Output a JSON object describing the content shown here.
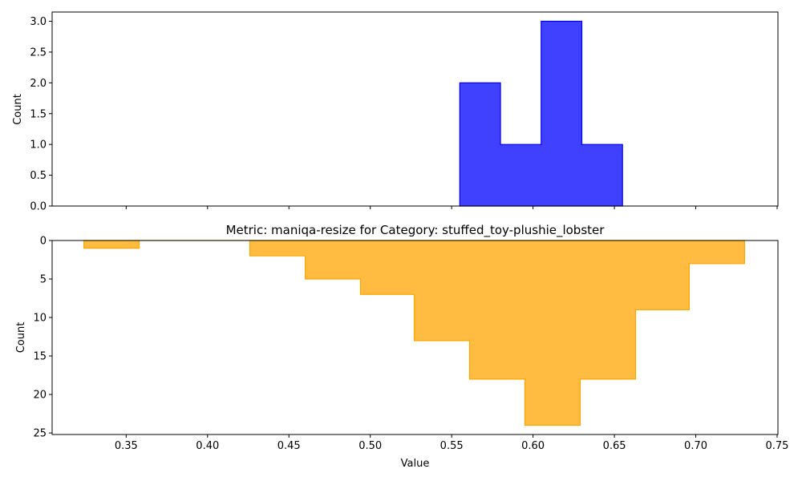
{
  "chart_data": [
    {
      "type": "histogram",
      "panel": "top",
      "title": "",
      "xlabel": "",
      "ylabel": "Count",
      "xlim": [
        0.3045,
        0.7505
      ],
      "ylim": [
        0,
        3.15
      ],
      "y_inverted": false,
      "color": "#0000ff",
      "fill_opacity": 0.75,
      "yticks": [
        0.0,
        0.5,
        1.0,
        1.5,
        2.0,
        2.5,
        3.0
      ],
      "ytick_labels": [
        "0.0",
        "0.5",
        "1.0",
        "1.5",
        "2.0",
        "2.5",
        "3.0"
      ],
      "bins": [
        {
          "x0": 0.555,
          "x1": 0.58,
          "count": 2
        },
        {
          "x0": 0.58,
          "x1": 0.605,
          "count": 1
        },
        {
          "x0": 0.605,
          "x1": 0.63,
          "count": 3
        },
        {
          "x0": 0.63,
          "x1": 0.655,
          "count": 1
        }
      ]
    },
    {
      "type": "histogram",
      "panel": "bottom",
      "title": "Metric: maniqa-resize for Category: stuffed_toy-plushie_lobster",
      "xlabel": "Value",
      "ylabel": "Count",
      "xlim": [
        0.3045,
        0.7505
      ],
      "ylim": [
        25.2,
        0
      ],
      "y_inverted": true,
      "color": "#ffa500",
      "fill_opacity": 0.75,
      "xticks": [
        0.35,
        0.4,
        0.45,
        0.5,
        0.55,
        0.6,
        0.65,
        0.7,
        0.75
      ],
      "xtick_labels": [
        "0.35",
        "0.40",
        "0.45",
        "0.50",
        "0.55",
        "0.60",
        "0.65",
        "0.70",
        "0.75"
      ],
      "yticks": [
        0,
        5,
        10,
        15,
        20,
        25
      ],
      "ytick_labels": [
        "0",
        "5",
        "10",
        "15",
        "20",
        "25"
      ],
      "bins": [
        {
          "x0": 0.324,
          "x1": 0.358,
          "count": 1
        },
        {
          "x0": 0.358,
          "x1": 0.392,
          "count": 0
        },
        {
          "x0": 0.392,
          "x1": 0.426,
          "count": 0
        },
        {
          "x0": 0.426,
          "x1": 0.46,
          "count": 2
        },
        {
          "x0": 0.46,
          "x1": 0.494,
          "count": 5
        },
        {
          "x0": 0.494,
          "x1": 0.527,
          "count": 7
        },
        {
          "x0": 0.527,
          "x1": 0.561,
          "count": 13
        },
        {
          "x0": 0.561,
          "x1": 0.595,
          "count": 18
        },
        {
          "x0": 0.595,
          "x1": 0.629,
          "count": 24
        },
        {
          "x0": 0.629,
          "x1": 0.663,
          "count": 18
        },
        {
          "x0": 0.663,
          "x1": 0.696,
          "count": 9
        },
        {
          "x0": 0.696,
          "x1": 0.73,
          "count": 3
        }
      ]
    }
  ]
}
